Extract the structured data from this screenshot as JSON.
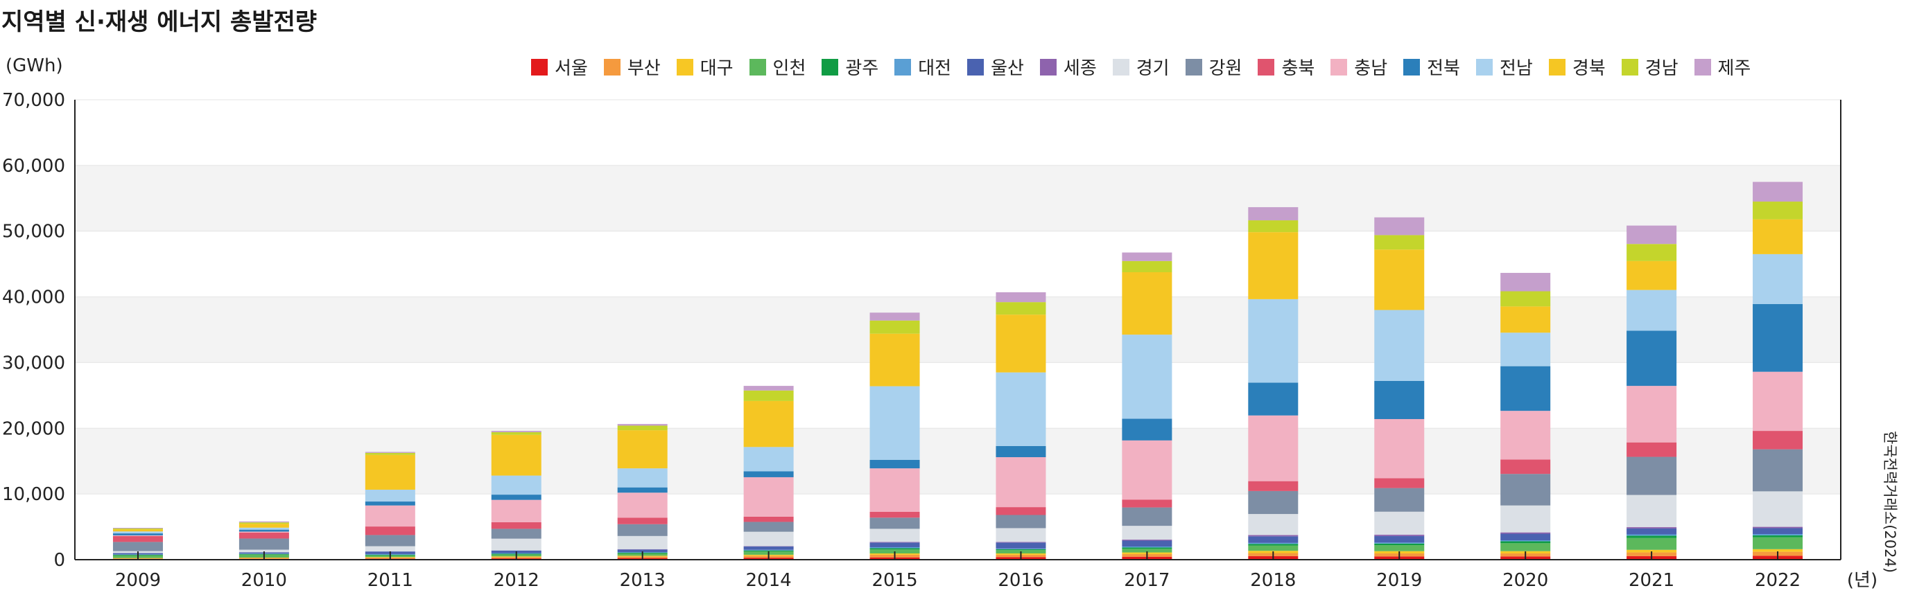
{
  "title": "지역별 신·재생 에너지 총발전량",
  "unit_label": "(GWh)",
  "source": "한국전력거래소(2024)",
  "chart_data": {
    "type": "bar",
    "stacked": true,
    "xlabel": "(년)",
    "ylabel": "(GWh)",
    "ylim": [
      0,
      70000
    ],
    "yticks": [
      0,
      10000,
      20000,
      30000,
      40000,
      50000,
      60000,
      70000
    ],
    "ytick_labels": [
      "0",
      "10,000",
      "20,000",
      "30,000",
      "40,000",
      "50,000",
      "60,000",
      "70,000"
    ],
    "categories": [
      "2009",
      "2010",
      "2011",
      "2012",
      "2013",
      "2014",
      "2015",
      "2016",
      "2017",
      "2018",
      "2019",
      "2020",
      "2021",
      "2022"
    ],
    "legend_position": "top-right",
    "series": [
      {
        "name": "서울",
        "color": "#e31a1c",
        "values": [
          100,
          120,
          150,
          200,
          250,
          300,
          350,
          400,
          450,
          550,
          500,
          500,
          550,
          600
        ]
      },
      {
        "name": "부산",
        "color": "#f59a3e",
        "values": [
          100,
          150,
          150,
          200,
          250,
          300,
          400,
          350,
          400,
          450,
          450,
          450,
          550,
          600
        ]
      },
      {
        "name": "대구",
        "color": "#f7c724",
        "values": [
          50,
          50,
          100,
          100,
          100,
          150,
          200,
          200,
          250,
          350,
          350,
          350,
          400,
          400
        ]
      },
      {
        "name": "인천",
        "color": "#5cb85c",
        "values": [
          400,
          450,
          250,
          300,
          350,
          500,
          600,
          500,
          550,
          800,
          900,
          1200,
          1800,
          1800
        ]
      },
      {
        "name": "광주",
        "color": "#109c44",
        "values": [
          100,
          100,
          100,
          100,
          100,
          150,
          200,
          150,
          200,
          250,
          250,
          300,
          350,
          300
        ]
      },
      {
        "name": "대전",
        "color": "#5a9fd4",
        "values": [
          50,
          50,
          100,
          100,
          100,
          100,
          150,
          100,
          150,
          150,
          150,
          150,
          200,
          200
        ]
      },
      {
        "name": "울산",
        "color": "#4a62b0",
        "values": [
          200,
          200,
          400,
          400,
          400,
          500,
          700,
          900,
          900,
          1000,
          1000,
          1000,
          900,
          900
        ]
      },
      {
        "name": "세종",
        "color": "#8e63ad",
        "values": [
          0,
          0,
          0,
          0,
          50,
          50,
          100,
          100,
          150,
          200,
          200,
          200,
          200,
          200
        ]
      },
      {
        "name": "경기",
        "color": "#dbe0e6",
        "values": [
          300,
          400,
          800,
          1800,
          2000,
          2200,
          2000,
          2100,
          2100,
          3200,
          3500,
          4100,
          4900,
          5400
        ]
      },
      {
        "name": "강원",
        "color": "#7d8ea5",
        "values": [
          1400,
          1700,
          1700,
          1500,
          1800,
          1500,
          1700,
          2000,
          2800,
          3500,
          3600,
          4800,
          5800,
          6400
        ]
      },
      {
        "name": "충북",
        "color": "#e0546e",
        "values": [
          900,
          900,
          1300,
          1000,
          1000,
          800,
          900,
          1200,
          1200,
          1500,
          1500,
          2200,
          2200,
          2800
        ]
      },
      {
        "name": "충남",
        "color": "#f2b1c2",
        "values": [
          100,
          150,
          3200,
          3400,
          3800,
          6000,
          6600,
          7600,
          9000,
          10000,
          9000,
          7400,
          8600,
          9000
        ]
      },
      {
        "name": "전북",
        "color": "#2b7fba",
        "values": [
          300,
          300,
          600,
          800,
          800,
          900,
          1300,
          1700,
          3300,
          5000,
          5800,
          6800,
          8400,
          10300
        ]
      },
      {
        "name": "전남",
        "color": "#a9d1ee",
        "values": [
          300,
          300,
          1800,
          2900,
          2900,
          3700,
          11200,
          11200,
          12800,
          12700,
          10800,
          5100,
          6200,
          7600
        ]
      },
      {
        "name": "경북",
        "color": "#f5c623",
        "values": [
          300,
          600,
          5300,
          6200,
          5800,
          7000,
          8000,
          8800,
          9500,
          10200,
          9200,
          4000,
          4400,
          5300
        ]
      },
      {
        "name": "경남",
        "color": "#c4d52c",
        "values": [
          150,
          200,
          300,
          400,
          700,
          1600,
          2000,
          1900,
          1700,
          1800,
          2200,
          2300,
          2600,
          2700
        ]
      },
      {
        "name": "제주",
        "color": "#c59fcc",
        "values": [
          100,
          150,
          150,
          200,
          250,
          700,
          1200,
          1500,
          1300,
          2000,
          2700,
          2800,
          2800,
          3000
        ]
      }
    ]
  }
}
